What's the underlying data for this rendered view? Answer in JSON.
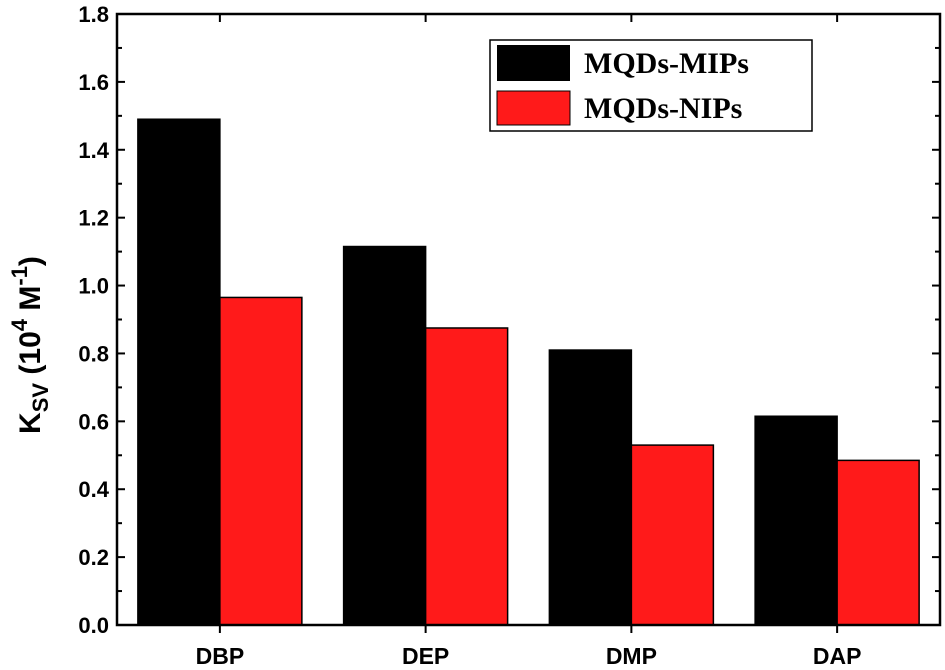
{
  "chart_data": {
    "type": "bar",
    "categories": [
      "DBP",
      "DEP",
      "DMP",
      "DAP"
    ],
    "series": [
      {
        "name": "MQDs-MIPs",
        "color": "#000000",
        "values": [
          1.49,
          1.115,
          0.81,
          0.615
        ]
      },
      {
        "name": "MQDs-NIPs",
        "color": "#ff1a1a",
        "values": [
          0.965,
          0.875,
          0.53,
          0.485
        ]
      }
    ],
    "ylabel": {
      "main": "K",
      "sub": "SV",
      "rest1": " (10",
      "sup1": "4",
      "rest2": " M",
      "sup2": "-1",
      "rest3": ")"
    },
    "ylim": [
      0,
      1.8
    ],
    "yticks": [
      "0.0",
      "0.2",
      "0.4",
      "0.6",
      "0.8",
      "1.0",
      "1.2",
      "1.4",
      "1.6",
      "1.8"
    ],
    "legend_position": "top-right",
    "grid": false
  }
}
